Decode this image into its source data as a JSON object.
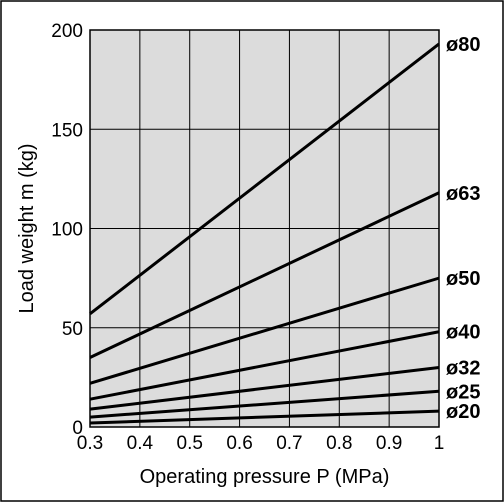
{
  "chart_data": {
    "type": "line",
    "title": "",
    "xlabel": "Operating pressure P (MPa)",
    "ylabel": "Load weight m (kg)",
    "xlim": [
      0.3,
      1.0
    ],
    "ylim": [
      0,
      200
    ],
    "x_ticks": [
      "0.3",
      "0.4",
      "0.5",
      "0.6",
      "0.7",
      "0.8",
      "0.9",
      "1"
    ],
    "y_ticks": [
      "0",
      "50",
      "100",
      "150",
      "200"
    ],
    "grid": true,
    "plot_background": "#dcdcdc",
    "line_color": "#000000",
    "x": [
      0.3,
      1.0
    ],
    "series": [
      {
        "name": "ø80",
        "values": [
          57,
          193
        ]
      },
      {
        "name": "ø63",
        "values": [
          35,
          118
        ]
      },
      {
        "name": "ø50",
        "values": [
          22,
          75
        ]
      },
      {
        "name": "ø40",
        "values": [
          14,
          48
        ]
      },
      {
        "name": "ø32",
        "values": [
          9,
          30
        ]
      },
      {
        "name": "ø25",
        "values": [
          5,
          18
        ]
      },
      {
        "name": "ø20",
        "values": [
          2,
          8
        ]
      }
    ]
  }
}
